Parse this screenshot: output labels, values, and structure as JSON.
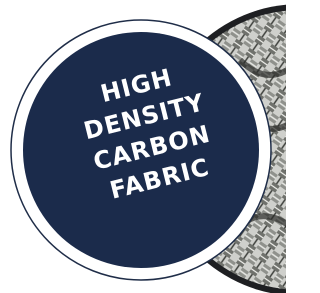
{
  "badge": {
    "lines": [
      "HIGH",
      "DENSITY",
      "CARBON",
      "FABRIC"
    ]
  }
}
